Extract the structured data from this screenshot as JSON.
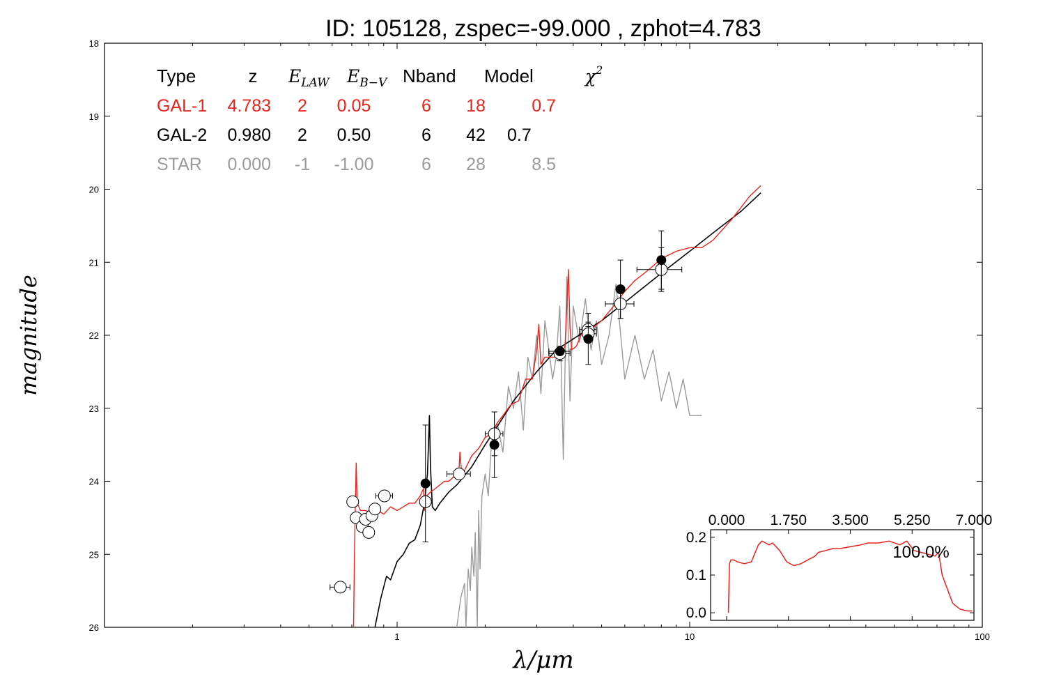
{
  "chart_data": [
    {
      "type": "line",
      "title": "ID:  105128, zspec=-99.000 , zphot=4.783",
      "xlabel": "λ/μm",
      "ylabel": "magnitude",
      "x_scale": "log",
      "xlim": [
        0.1,
        100
      ],
      "ylim": [
        26,
        18
      ],
      "y_inverted": true,
      "x_ticks": [
        "1",
        "10",
        "100"
      ],
      "y_ticks": [
        "18",
        "19",
        "20",
        "21",
        "22",
        "23",
        "24",
        "25",
        "26"
      ],
      "grid": false,
      "fit_table": {
        "headers": [
          "Type",
          "z",
          "E_LAW",
          "E_B−V",
          "Nband",
          "Model",
          "χ²"
        ],
        "rows": [
          {
            "cells": [
              "GAL-1",
              "4.783",
              "2",
              "0.05",
              "6",
              "18",
              "0.7"
            ],
            "color": "#e8231c"
          },
          {
            "cells": [
              "GAL-2",
              "0.980",
              "2",
              "0.50",
              "6",
              "42",
              "0.7"
            ],
            "color": "#000000"
          },
          {
            "cells": [
              "STAR",
              "0.000",
              "-1",
              "-1.00",
              "6",
              "28",
              "8.5"
            ],
            "color": "#9a9a9a"
          }
        ]
      },
      "series": [
        {
          "role": "GAL-1 template",
          "color": "#e8231c",
          "x": [
            0.71,
            0.715,
            0.72,
            0.725,
            0.73,
            0.75,
            0.78,
            0.82,
            0.86,
            0.9,
            0.95,
            1.0,
            1.05,
            1.1,
            1.15,
            1.2,
            1.23,
            1.24,
            1.26,
            1.3,
            1.35,
            1.4,
            1.45,
            1.5,
            1.55,
            1.6,
            1.63,
            1.64,
            1.66,
            1.7,
            1.8,
            1.9,
            2.0,
            2.1,
            2.2,
            2.3,
            2.45,
            2.6,
            2.75,
            2.9,
            3.0,
            3.05,
            3.1,
            3.2,
            3.3,
            3.45,
            3.6,
            3.75,
            3.85,
            3.9,
            3.95,
            4.1,
            4.3,
            4.5,
            5.0,
            5.5,
            6.0,
            6.5,
            7.0,
            7.5,
            8.0,
            9.0,
            10.0,
            11.0,
            12.0,
            14.0,
            16.0,
            17.5
          ],
          "y": [
            26.0,
            25.0,
            24.3,
            23.75,
            24.3,
            24.4,
            24.4,
            24.45,
            24.4,
            24.45,
            24.35,
            24.4,
            24.35,
            24.3,
            24.3,
            24.2,
            24.1,
            24.4,
            24.2,
            24.15,
            24.1,
            24.05,
            24.0,
            24.0,
            23.95,
            23.9,
            23.8,
            23.6,
            23.85,
            23.85,
            23.65,
            23.55,
            23.4,
            23.35,
            23.2,
            23.1,
            22.95,
            22.9,
            22.6,
            22.6,
            22.2,
            21.85,
            22.4,
            22.3,
            22.3,
            22.3,
            22.3,
            22.15,
            21.1,
            21.9,
            22.2,
            22.15,
            21.95,
            21.95,
            21.8,
            21.6,
            21.4,
            21.25,
            21.15,
            21.05,
            20.95,
            20.85,
            20.8,
            20.8,
            20.7,
            20.4,
            20.1,
            19.95
          ]
        },
        {
          "role": "GAL-2 template",
          "color": "#000000",
          "x": [
            0.84,
            0.88,
            0.92,
            0.95,
            1.0,
            1.05,
            1.1,
            1.15,
            1.2,
            1.24,
            1.27,
            1.29,
            1.3,
            1.32,
            1.35,
            1.4,
            1.5,
            1.6,
            1.8,
            2.0,
            2.2,
            2.5,
            3.0,
            3.5,
            4.0,
            5.0,
            6.0,
            8.0,
            10.0,
            12.0,
            15.0,
            17.5
          ],
          "y": [
            26.0,
            25.6,
            25.3,
            25.35,
            25.1,
            25.0,
            24.85,
            24.8,
            24.6,
            24.3,
            23.9,
            23.1,
            23.8,
            24.35,
            24.4,
            24.3,
            24.15,
            24.05,
            23.8,
            23.5,
            23.25,
            22.9,
            22.5,
            22.2,
            22.05,
            21.8,
            21.55,
            21.15,
            20.85,
            20.6,
            20.3,
            20.05
          ]
        },
        {
          "role": "STAR template",
          "color": "#9a9a9a",
          "x": [
            1.6,
            1.65,
            1.7,
            1.72,
            1.75,
            1.78,
            1.8,
            1.83,
            1.85,
            1.88,
            1.9,
            1.92,
            1.95,
            2.0,
            2.05,
            2.1,
            2.2,
            2.3,
            2.4,
            2.5,
            2.6,
            2.7,
            2.8,
            2.9,
            3.0,
            3.1,
            3.2,
            3.3,
            3.4,
            3.5,
            3.6,
            3.7,
            3.8,
            3.9,
            4.0,
            4.2,
            4.4,
            4.6,
            4.8,
            5.0,
            5.3,
            5.6,
            6.0,
            6.5,
            7.0,
            7.5,
            8.0,
            8.5,
            9.0,
            9.5,
            10.0,
            11.0
          ],
          "y": [
            26.0,
            25.6,
            25.4,
            26.0,
            25.2,
            25.5,
            24.9,
            25.3,
            24.7,
            26.0,
            24.4,
            25.2,
            24.2,
            23.9,
            24.2,
            23.5,
            23.2,
            23.6,
            22.7,
            23.0,
            22.5,
            23.3,
            22.3,
            22.6,
            22.0,
            22.8,
            21.8,
            22.2,
            22.6,
            22.3,
            21.6,
            23.7,
            21.2,
            22.9,
            21.6,
            22.1,
            21.5,
            22.2,
            21.8,
            22.4,
            22.0,
            21.3,
            22.6,
            22.0,
            22.6,
            22.2,
            22.9,
            22.5,
            23.0,
            22.6,
            23.1,
            23.1
          ]
        }
      ],
      "points_open": [
        {
          "x": 0.64,
          "y": 25.45,
          "xerr": 0.05,
          "yerr": 0
        },
        {
          "x": 0.705,
          "y": 24.28,
          "xerr": 0,
          "yerr": 0
        },
        {
          "x": 0.725,
          "y": 24.5,
          "xerr": 0,
          "yerr": 0
        },
        {
          "x": 0.76,
          "y": 24.62,
          "xerr": 0,
          "yerr": 0
        },
        {
          "x": 0.78,
          "y": 24.52,
          "xerr": 0,
          "yerr": 0
        },
        {
          "x": 0.8,
          "y": 24.7,
          "xerr": 0,
          "yerr": 0
        },
        {
          "x": 0.82,
          "y": 24.47,
          "xerr": 0,
          "yerr": 0
        },
        {
          "x": 0.84,
          "y": 24.38,
          "xerr": 0,
          "yerr": 0
        },
        {
          "x": 0.905,
          "y": 24.2,
          "xerr": 0.06,
          "yerr": 0
        },
        {
          "x": 1.25,
          "y": 24.28,
          "xerr": 0,
          "yerr": 0.05
        },
        {
          "x": 1.63,
          "y": 23.9,
          "xerr": 0.15,
          "yerr": 0
        },
        {
          "x": 2.15,
          "y": 23.35,
          "xerr": 0.15,
          "yerr": 0.3
        },
        {
          "x": 3.6,
          "y": 22.25,
          "xerr": 0.3,
          "yerr": 0.1
        },
        {
          "x": 4.5,
          "y": 21.92,
          "xerr": 0.3,
          "yerr": 0.1
        },
        {
          "x": 4.5,
          "y": 21.98,
          "xerr": 0.3,
          "yerr": 0.1
        },
        {
          "x": 5.8,
          "y": 21.57,
          "xerr": 0.65,
          "yerr": 0.2
        },
        {
          "x": 8.0,
          "y": 21.1,
          "xerr": 1.4,
          "yerr": 0.3
        }
      ],
      "points_filled": [
        {
          "x": 1.25,
          "y": 24.03,
          "xerr": 0,
          "yerr": 0.8
        },
        {
          "x": 2.15,
          "y": 23.5,
          "xerr": 0,
          "yerr": 0.45
        },
        {
          "x": 3.6,
          "y": 22.22,
          "xerr": 0.3,
          "yerr": 0
        },
        {
          "x": 4.5,
          "y": 22.05,
          "xerr": 0,
          "yerr": 0.35
        },
        {
          "x": 5.8,
          "y": 21.37,
          "xerr": 0,
          "yerr": 0.4
        },
        {
          "x": 8.0,
          "y": 20.97,
          "xerr": 0,
          "yerr": 0.4
        }
      ]
    },
    {
      "type": "line",
      "role": "photometric redshift probability distribution (inset)",
      "xlim": [
        0,
        7
      ],
      "ylim": [
        -0.02,
        0.22
      ],
      "x_ticks": [
        "0.000",
        "1.750",
        "3.500",
        "5.250",
        "7.000"
      ],
      "y_ticks": [
        "0.0",
        "0.1",
        "0.2"
      ],
      "x_tick_position": "top",
      "annotation": "100.0%",
      "color": "#e8231c",
      "x": [
        0.05,
        0.08,
        0.12,
        0.2,
        0.3,
        0.5,
        0.7,
        0.9,
        1.0,
        1.1,
        1.2,
        1.3,
        1.5,
        1.7,
        1.9,
        2.1,
        2.3,
        2.5,
        2.6,
        2.8,
        3.0,
        3.2,
        3.5,
        3.8,
        4.0,
        4.3,
        4.6,
        4.9,
        5.1,
        5.3,
        5.5,
        5.7,
        5.9,
        6.0,
        6.05,
        6.1,
        6.2,
        6.3,
        6.4,
        6.6,
        6.8,
        6.95
      ],
      "y": [
        0.0,
        0.13,
        0.14,
        0.14,
        0.135,
        0.13,
        0.135,
        0.18,
        0.19,
        0.185,
        0.18,
        0.185,
        0.165,
        0.135,
        0.125,
        0.13,
        0.14,
        0.15,
        0.16,
        0.165,
        0.17,
        0.17,
        0.175,
        0.18,
        0.185,
        0.185,
        0.19,
        0.18,
        0.19,
        0.165,
        0.16,
        0.155,
        0.15,
        0.16,
        0.13,
        0.1,
        0.075,
        0.05,
        0.025,
        0.01,
        0.005,
        0.005
      ]
    }
  ]
}
